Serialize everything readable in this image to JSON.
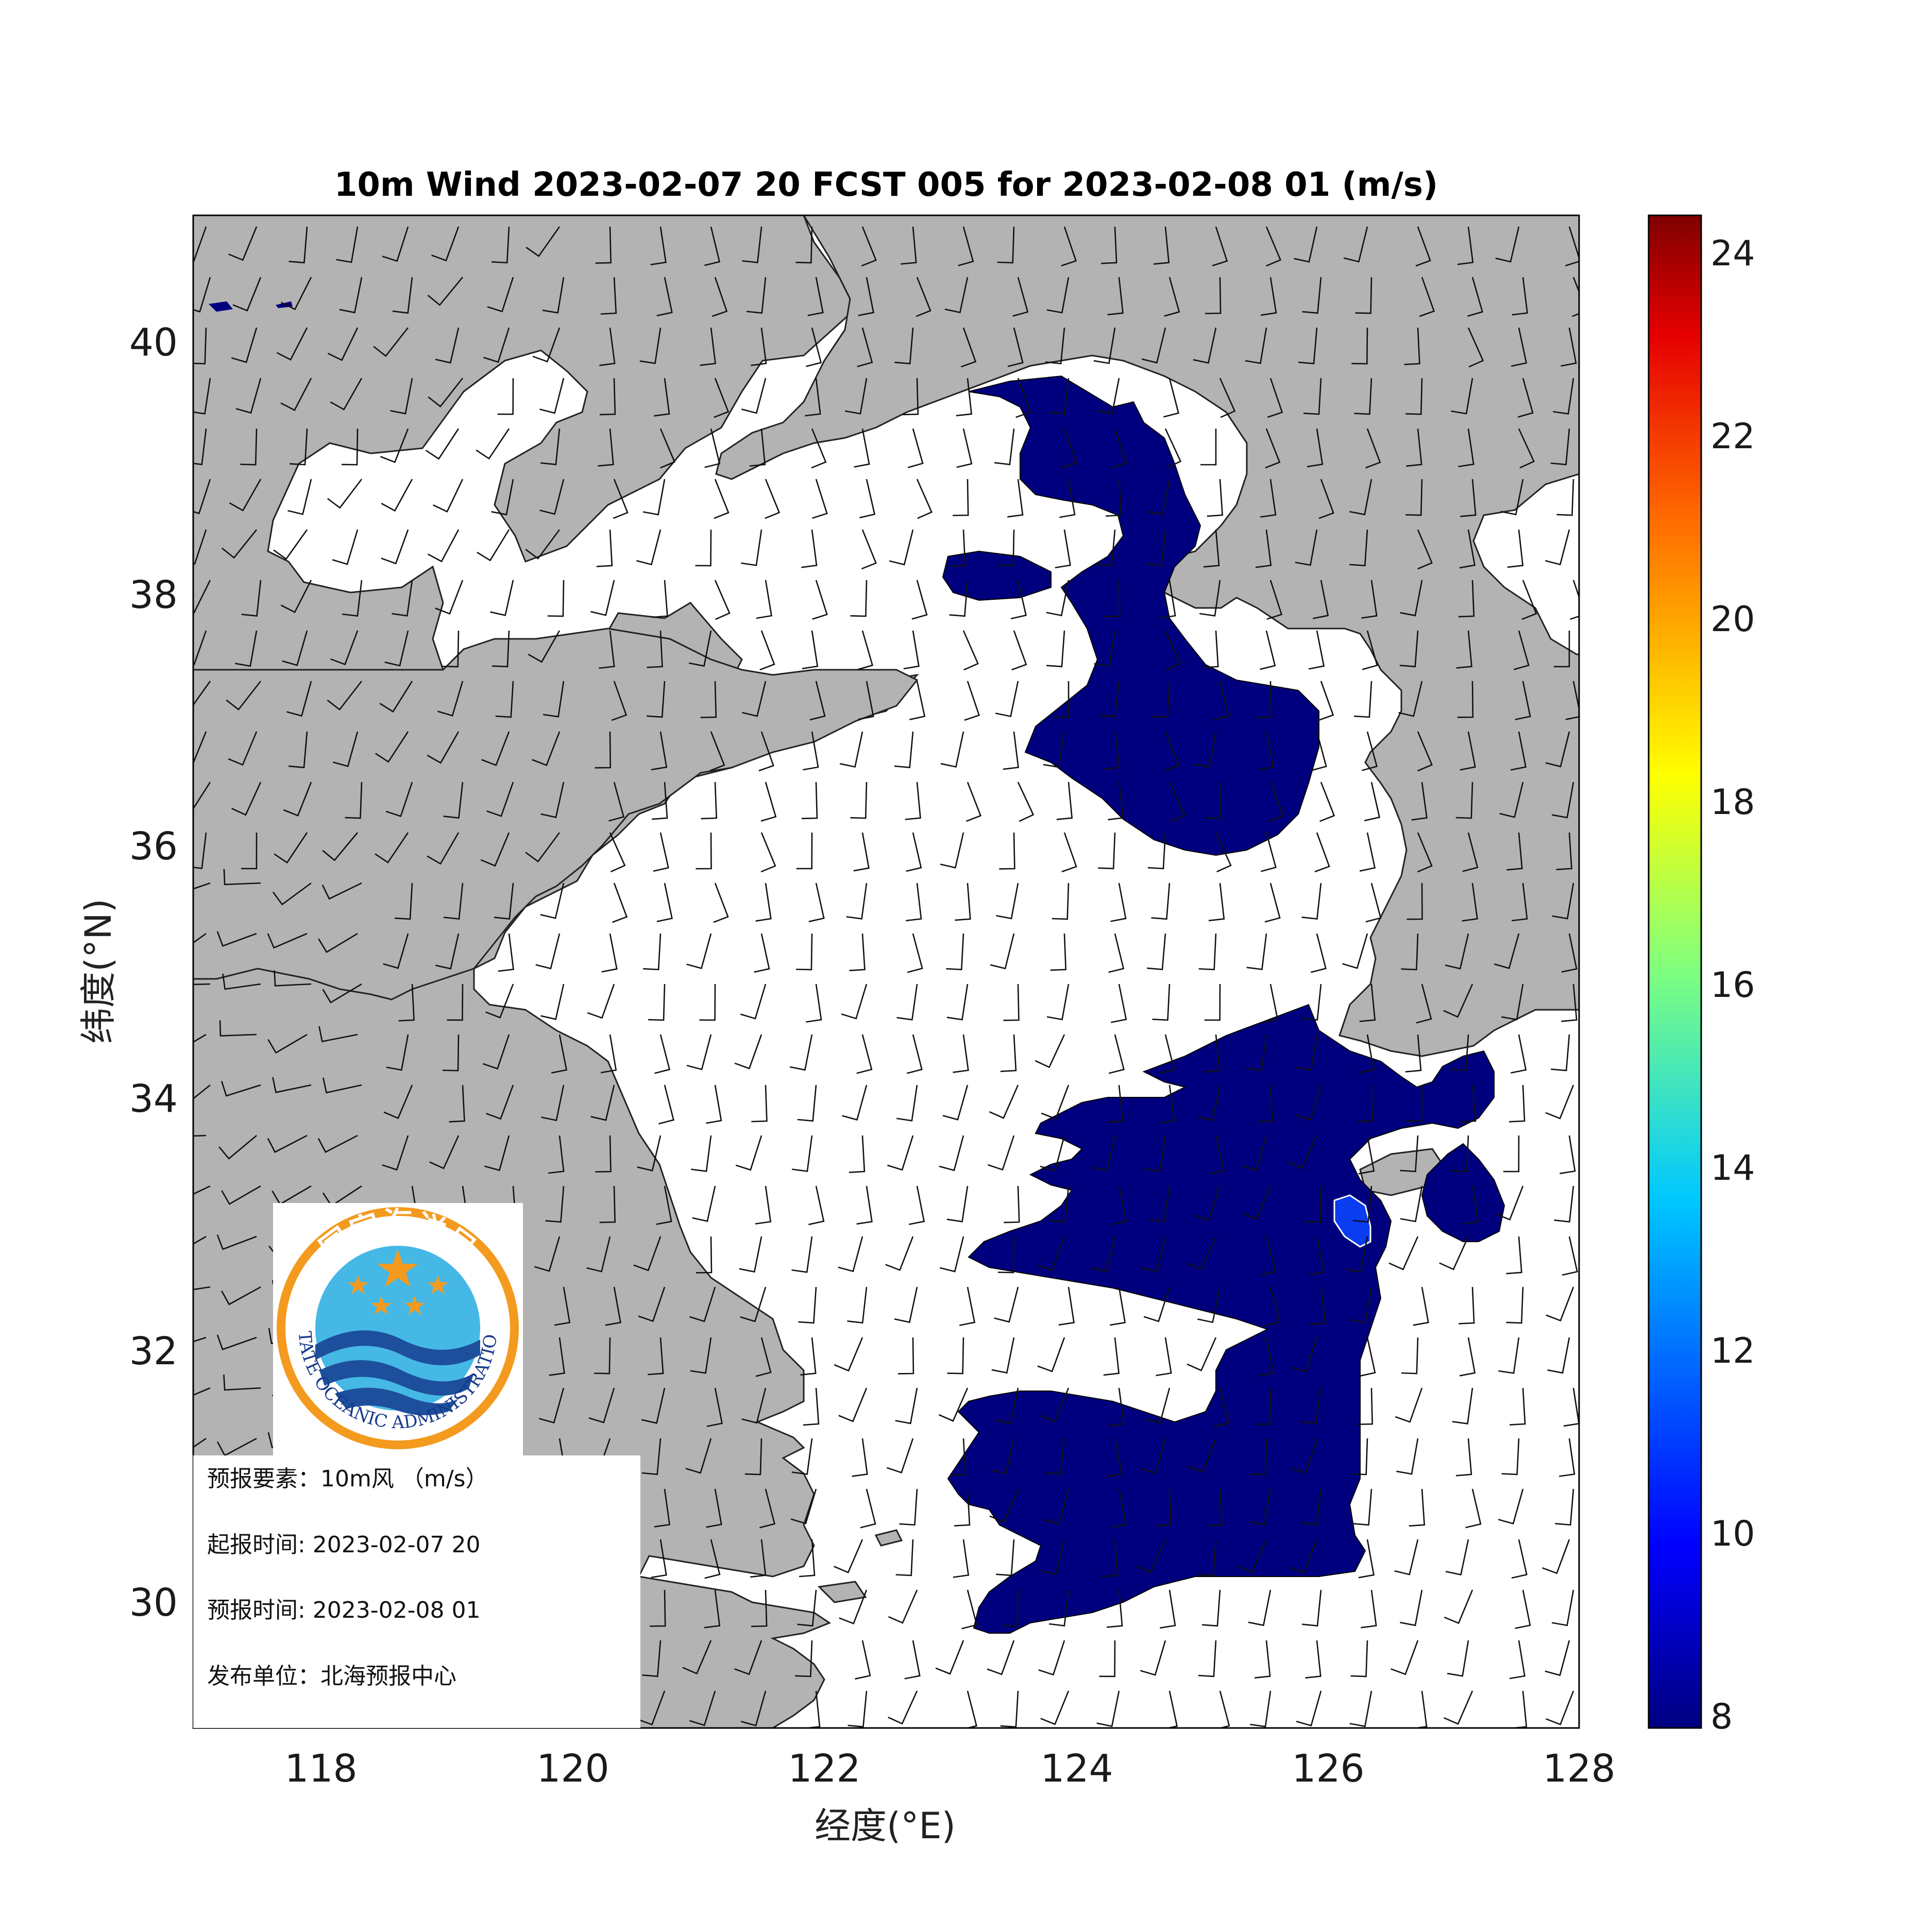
{
  "title": "10m Wind 2023-02-07 20 FCST 005 for 2023-02-08 01 (m/s)",
  "axes": {
    "xlabel": "经度(°E)",
    "ylabel": "纬度(°N)",
    "xticks": [
      "118",
      "120",
      "122",
      "124",
      "126",
      "128"
    ],
    "yticks": [
      "40",
      "38",
      "36",
      "34",
      "32",
      "30"
    ],
    "xlim": [
      117,
      128
    ],
    "ylim": [
      29,
      41
    ]
  },
  "colorbar": {
    "ticks": [
      "24",
      "22",
      "20",
      "18",
      "16",
      "14",
      "12",
      "10",
      "8"
    ],
    "range": [
      8,
      24.5
    ]
  },
  "info_box": {
    "element": "预报要素：10m风 （m/s）",
    "start_time": "起报时间: 2023-02-07 20",
    "valid_time": "预报时间: 2023-02-08 01",
    "issuer": "发布单位：北海预报中心"
  },
  "logo": {
    "name_cn": "国家海洋局",
    "name_en": "STATE OCEANIC ADMINISTRATION",
    "ring_color": "#f39a1f",
    "sky_color": "#45b8e6",
    "wave_color": "#1d4f9c"
  },
  "colors": {
    "land": "#b3b3b3",
    "sea": "#ffffff",
    "contour_8": "#00007f",
    "contour_10": "#0a3cf0"
  },
  "chart_data": {
    "type": "wind-barb map",
    "variable": "10m wind speed",
    "unit": "m/s",
    "filled_regions": [
      {
        "level": 8,
        "area": "central Yellow Sea / north",
        "approx_lon": [
          123.5,
          125.9
        ],
        "approx_lat": [
          35.9,
          39.7
        ]
      },
      {
        "level": 8,
        "area": "southern Yellow Sea / East China Sea",
        "approx_lon": [
          122.7,
          127.3
        ],
        "approx_lat": [
          29.7,
          34.7
        ]
      },
      {
        "level": 10,
        "area": "near 126.2E 33.0N",
        "approx_lon": [
          126.0,
          126.4
        ],
        "approx_lat": [
          32.8,
          33.2
        ]
      }
    ]
  }
}
